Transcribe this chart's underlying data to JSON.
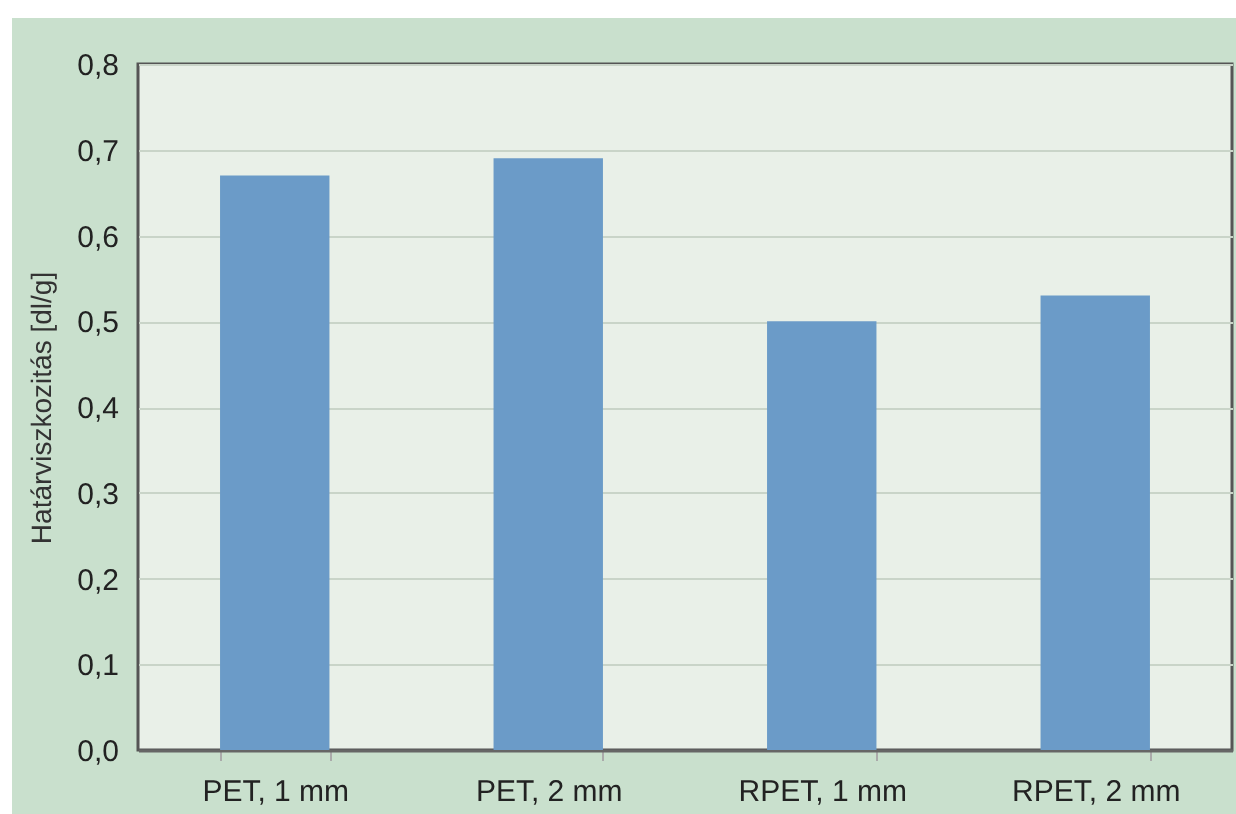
{
  "chart_data": {
    "type": "bar",
    "ylabel": "Határviszkozitás [dl/g]",
    "categories": [
      "PET, 1 mm",
      "PET, 2 mm",
      "RPET, 1 mm",
      "RPET, 2 mm"
    ],
    "values": [
      0.67,
      0.69,
      0.5,
      0.53
    ],
    "color": "#6b9bc8",
    "ylim": [
      0,
      0.8
    ],
    "yticks": [
      {
        "value": 0,
        "label": "0,0"
      },
      {
        "value": 0.1,
        "label": "0,1"
      },
      {
        "value": 0.2,
        "label": "0,2"
      },
      {
        "value": 0.3,
        "label": "0,3"
      },
      {
        "value": 0.4,
        "label": "0,4"
      },
      {
        "value": 0.5,
        "label": "0,5"
      },
      {
        "value": 0.6,
        "label": "0,6"
      },
      {
        "value": 0.7,
        "label": "0,7"
      },
      {
        "value": 0.8,
        "label": "0,8"
      }
    ],
    "grid": "y"
  }
}
